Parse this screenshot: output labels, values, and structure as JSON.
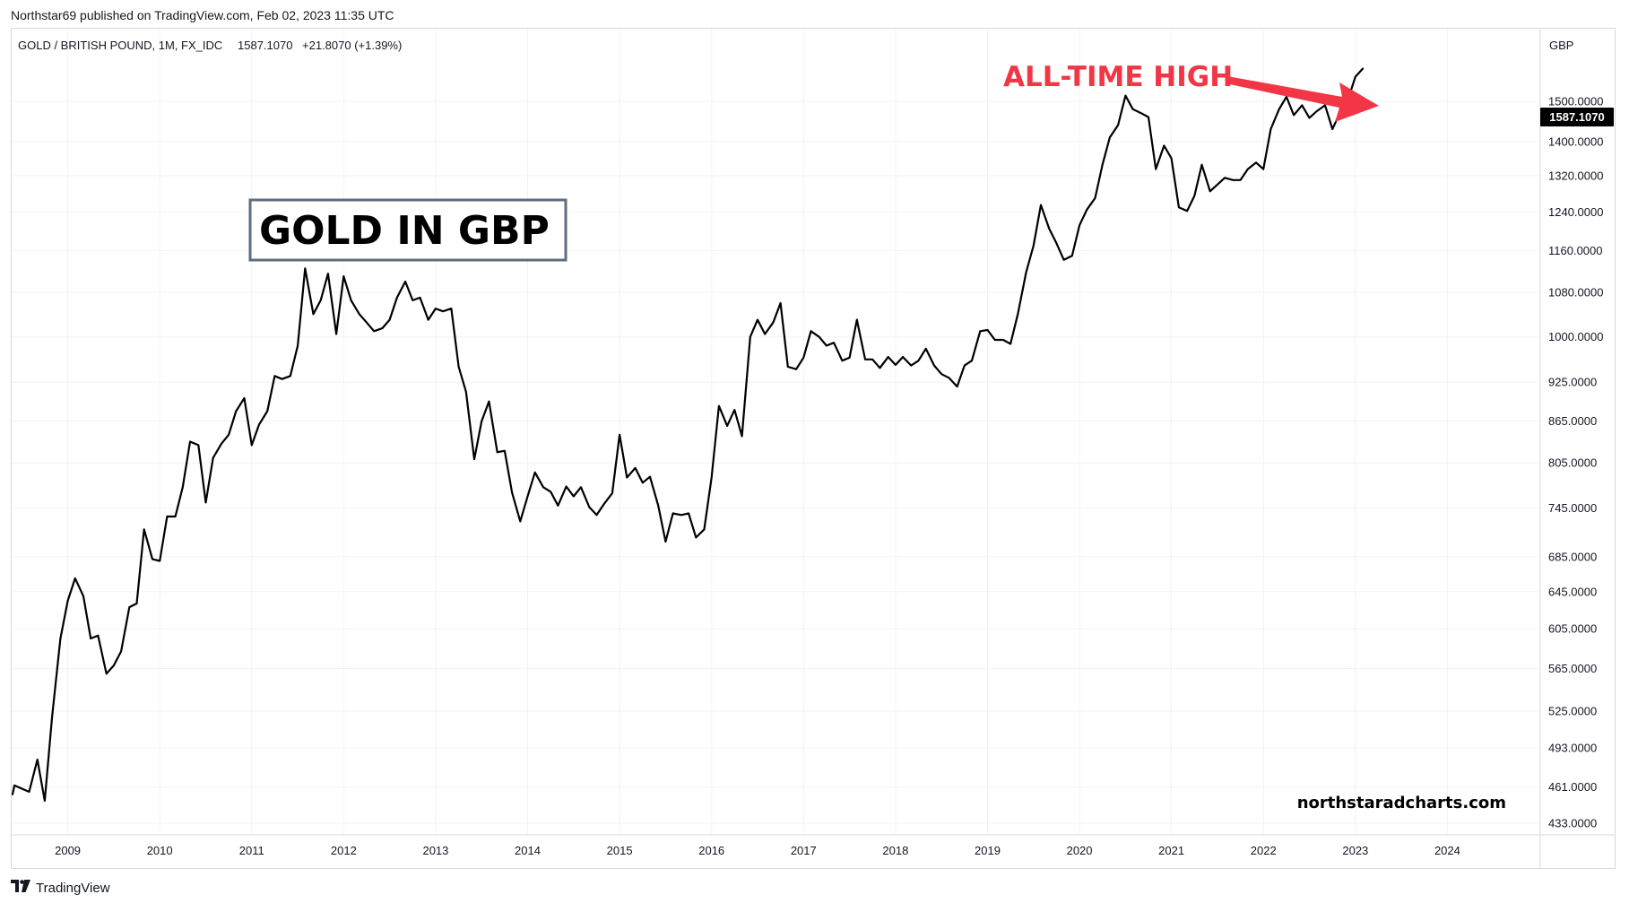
{
  "publisher_line": "Northstar69 published on TradingView.com, Feb 02, 2023 11:35 UTC",
  "footer": {
    "brand_label": "TradingView",
    "logo_glyph": "𝟭𝟳"
  },
  "colors": {
    "line": "#000000",
    "annotation": "#f23645",
    "grid": "#f0f3fa",
    "axis_text": "#131722",
    "price_label_bg": "#000000",
    "price_label_text": "#ffffff",
    "title_box_border": "#5d6d7e"
  },
  "chart_data": {
    "type": "line",
    "symbol_line": {
      "name": "GOLD / BRITISH POUND, 1M, FX_IDC",
      "last": "1587.1070",
      "change": "+21.8070 (+1.39%)"
    },
    "currency_label": "GBP",
    "title": "GOLD IN GBP",
    "annotation": "ALL-TIME HIGH",
    "watermark": "northstaradcharts.com",
    "last_price_label": "1587.1070",
    "y_scale": "log",
    "ylim": [
      425,
      1700
    ],
    "xlim": [
      2008.39,
      2025.0
    ],
    "y_ticks": [
      {
        "value": 433,
        "label": "433.0000"
      },
      {
        "value": 461,
        "label": "461.0000"
      },
      {
        "value": 493,
        "label": "493.0000"
      },
      {
        "value": 525,
        "label": "525.0000"
      },
      {
        "value": 565,
        "label": "565.0000"
      },
      {
        "value": 605,
        "label": "605.0000"
      },
      {
        "value": 645,
        "label": "645.0000"
      },
      {
        "value": 685,
        "label": "685.0000"
      },
      {
        "value": 745,
        "label": "745.0000"
      },
      {
        "value": 805,
        "label": "805.0000"
      },
      {
        "value": 865,
        "label": "865.0000"
      },
      {
        "value": 925,
        "label": "925.0000"
      },
      {
        "value": 1000,
        "label": "1000.0000"
      },
      {
        "value": 1080,
        "label": "1080.0000"
      },
      {
        "value": 1160,
        "label": "1160.0000"
      },
      {
        "value": 1240,
        "label": "1240.0000"
      },
      {
        "value": 1320,
        "label": "1320.0000"
      },
      {
        "value": 1400,
        "label": "1400.0000"
      },
      {
        "value": 1500,
        "label": "1500.0000"
      }
    ],
    "x_ticks": [
      {
        "value": 2009,
        "label": "2009"
      },
      {
        "value": 2010,
        "label": "2010"
      },
      {
        "value": 2011,
        "label": "2011"
      },
      {
        "value": 2012,
        "label": "2012"
      },
      {
        "value": 2013,
        "label": "2013"
      },
      {
        "value": 2014,
        "label": "2014"
      },
      {
        "value": 2015,
        "label": "2015"
      },
      {
        "value": 2016,
        "label": "2016"
      },
      {
        "value": 2017,
        "label": "2017"
      },
      {
        "value": 2018,
        "label": "2018"
      },
      {
        "value": 2019,
        "label": "2019"
      },
      {
        "value": 2020,
        "label": "2020"
      },
      {
        "value": 2021,
        "label": "2021"
      },
      {
        "value": 2022,
        "label": "2022"
      },
      {
        "value": 2023,
        "label": "2023"
      },
      {
        "value": 2024,
        "label": "2024"
      }
    ],
    "series": [
      {
        "name": "GOLD / BRITISH POUND",
        "x": [
          2008.4,
          2008.42,
          2008.58,
          2008.67,
          2008.75,
          2008.83,
          2008.92,
          2009.0,
          2009.08,
          2009.17,
          2009.25,
          2009.33,
          2009.42,
          2009.5,
          2009.58,
          2009.67,
          2009.75,
          2009.83,
          2009.92,
          2010.0,
          2010.08,
          2010.17,
          2010.25,
          2010.33,
          2010.42,
          2010.5,
          2010.58,
          2010.67,
          2010.75,
          2010.83,
          2010.92,
          2011.0,
          2011.08,
          2011.17,
          2011.25,
          2011.33,
          2011.42,
          2011.5,
          2011.58,
          2011.67,
          2011.75,
          2011.83,
          2011.92,
          2012.0,
          2012.08,
          2012.17,
          2012.25,
          2012.33,
          2012.42,
          2012.5,
          2012.58,
          2012.67,
          2012.75,
          2012.83,
          2012.92,
          2013.0,
          2013.08,
          2013.17,
          2013.25,
          2013.33,
          2013.42,
          2013.5,
          2013.58,
          2013.67,
          2013.75,
          2013.83,
          2013.92,
          2014.0,
          2014.08,
          2014.17,
          2014.25,
          2014.33,
          2014.42,
          2014.5,
          2014.58,
          2014.67,
          2014.75,
          2014.83,
          2014.92,
          2015.0,
          2015.08,
          2015.17,
          2015.25,
          2015.33,
          2015.42,
          2015.5,
          2015.58,
          2015.67,
          2015.75,
          2015.83,
          2015.92,
          2016.0,
          2016.08,
          2016.17,
          2016.25,
          2016.33,
          2016.42,
          2016.5,
          2016.58,
          2016.67,
          2016.75,
          2016.83,
          2016.92,
          2017.0,
          2017.08,
          2017.17,
          2017.25,
          2017.33,
          2017.42,
          2017.5,
          2017.58,
          2017.67,
          2017.75,
          2017.83,
          2017.92,
          2018.0,
          2018.08,
          2018.17,
          2018.25,
          2018.33,
          2018.42,
          2018.5,
          2018.58,
          2018.67,
          2018.75,
          2018.83,
          2018.92,
          2019.0,
          2019.08,
          2019.17,
          2019.25,
          2019.33,
          2019.42,
          2019.5,
          2019.58,
          2019.67,
          2019.75,
          2019.83,
          2019.92,
          2020.0,
          2020.08,
          2020.17,
          2020.25,
          2020.33,
          2020.42,
          2020.5,
          2020.58,
          2020.67,
          2020.75,
          2020.83,
          2020.92,
          2021.0,
          2021.08,
          2021.17,
          2021.25,
          2021.33,
          2021.42,
          2021.5,
          2021.58,
          2021.67,
          2021.75,
          2021.83,
          2021.92,
          2022.0,
          2022.08,
          2022.17,
          2022.25,
          2022.33,
          2022.42,
          2022.5,
          2022.58,
          2022.67,
          2022.75,
          2022.83,
          2022.92,
          2023.0,
          2023.08
        ],
        "values": [
          455,
          462,
          457,
          483,
          450,
          520,
          595,
          635,
          660,
          640,
          595,
          598,
          560,
          568,
          582,
          628,
          632,
          718,
          682,
          680,
          734,
          734,
          772,
          835,
          830,
          752,
          812,
          832,
          845,
          880,
          900,
          830,
          860,
          880,
          935,
          930,
          935,
          985,
          1125,
          1040,
          1065,
          1115,
          1005,
          1110,
          1065,
          1040,
          1025,
          1010,
          1015,
          1030,
          1070,
          1100,
          1065,
          1070,
          1030,
          1050,
          1045,
          1050,
          950,
          910,
          810,
          865,
          895,
          820,
          822,
          765,
          728,
          760,
          792,
          772,
          766,
          748,
          773,
          760,
          772,
          746,
          736,
          750,
          764,
          845,
          785,
          798,
          778,
          786,
          748,
          703,
          738,
          736,
          738,
          708,
          718,
          785,
          888,
          858,
          882,
          843,
          1000,
          1030,
          1005,
          1025,
          1060,
          950,
          946,
          965,
          1010,
          1000,
          985,
          990,
          960,
          965,
          1030,
          962,
          962,
          948,
          966,
          953,
          966,
          952,
          960,
          980,
          952,
          938,
          932,
          918,
          952,
          960,
          1010,
          1012,
          995,
          995,
          988,
          1040,
          1118,
          1170,
          1255,
          1205,
          1175,
          1142,
          1150,
          1212,
          1245,
          1270,
          1345,
          1410,
          1440,
          1515,
          1480,
          1470,
          1460,
          1335,
          1390,
          1360,
          1250,
          1242,
          1275,
          1345,
          1285,
          1300,
          1315,
          1310,
          1310,
          1335,
          1350,
          1335,
          1430,
          1480,
          1512,
          1465,
          1490,
          1458,
          1475,
          1490,
          1430,
          1470,
          1505,
          1565,
          1587
        ]
      }
    ]
  }
}
